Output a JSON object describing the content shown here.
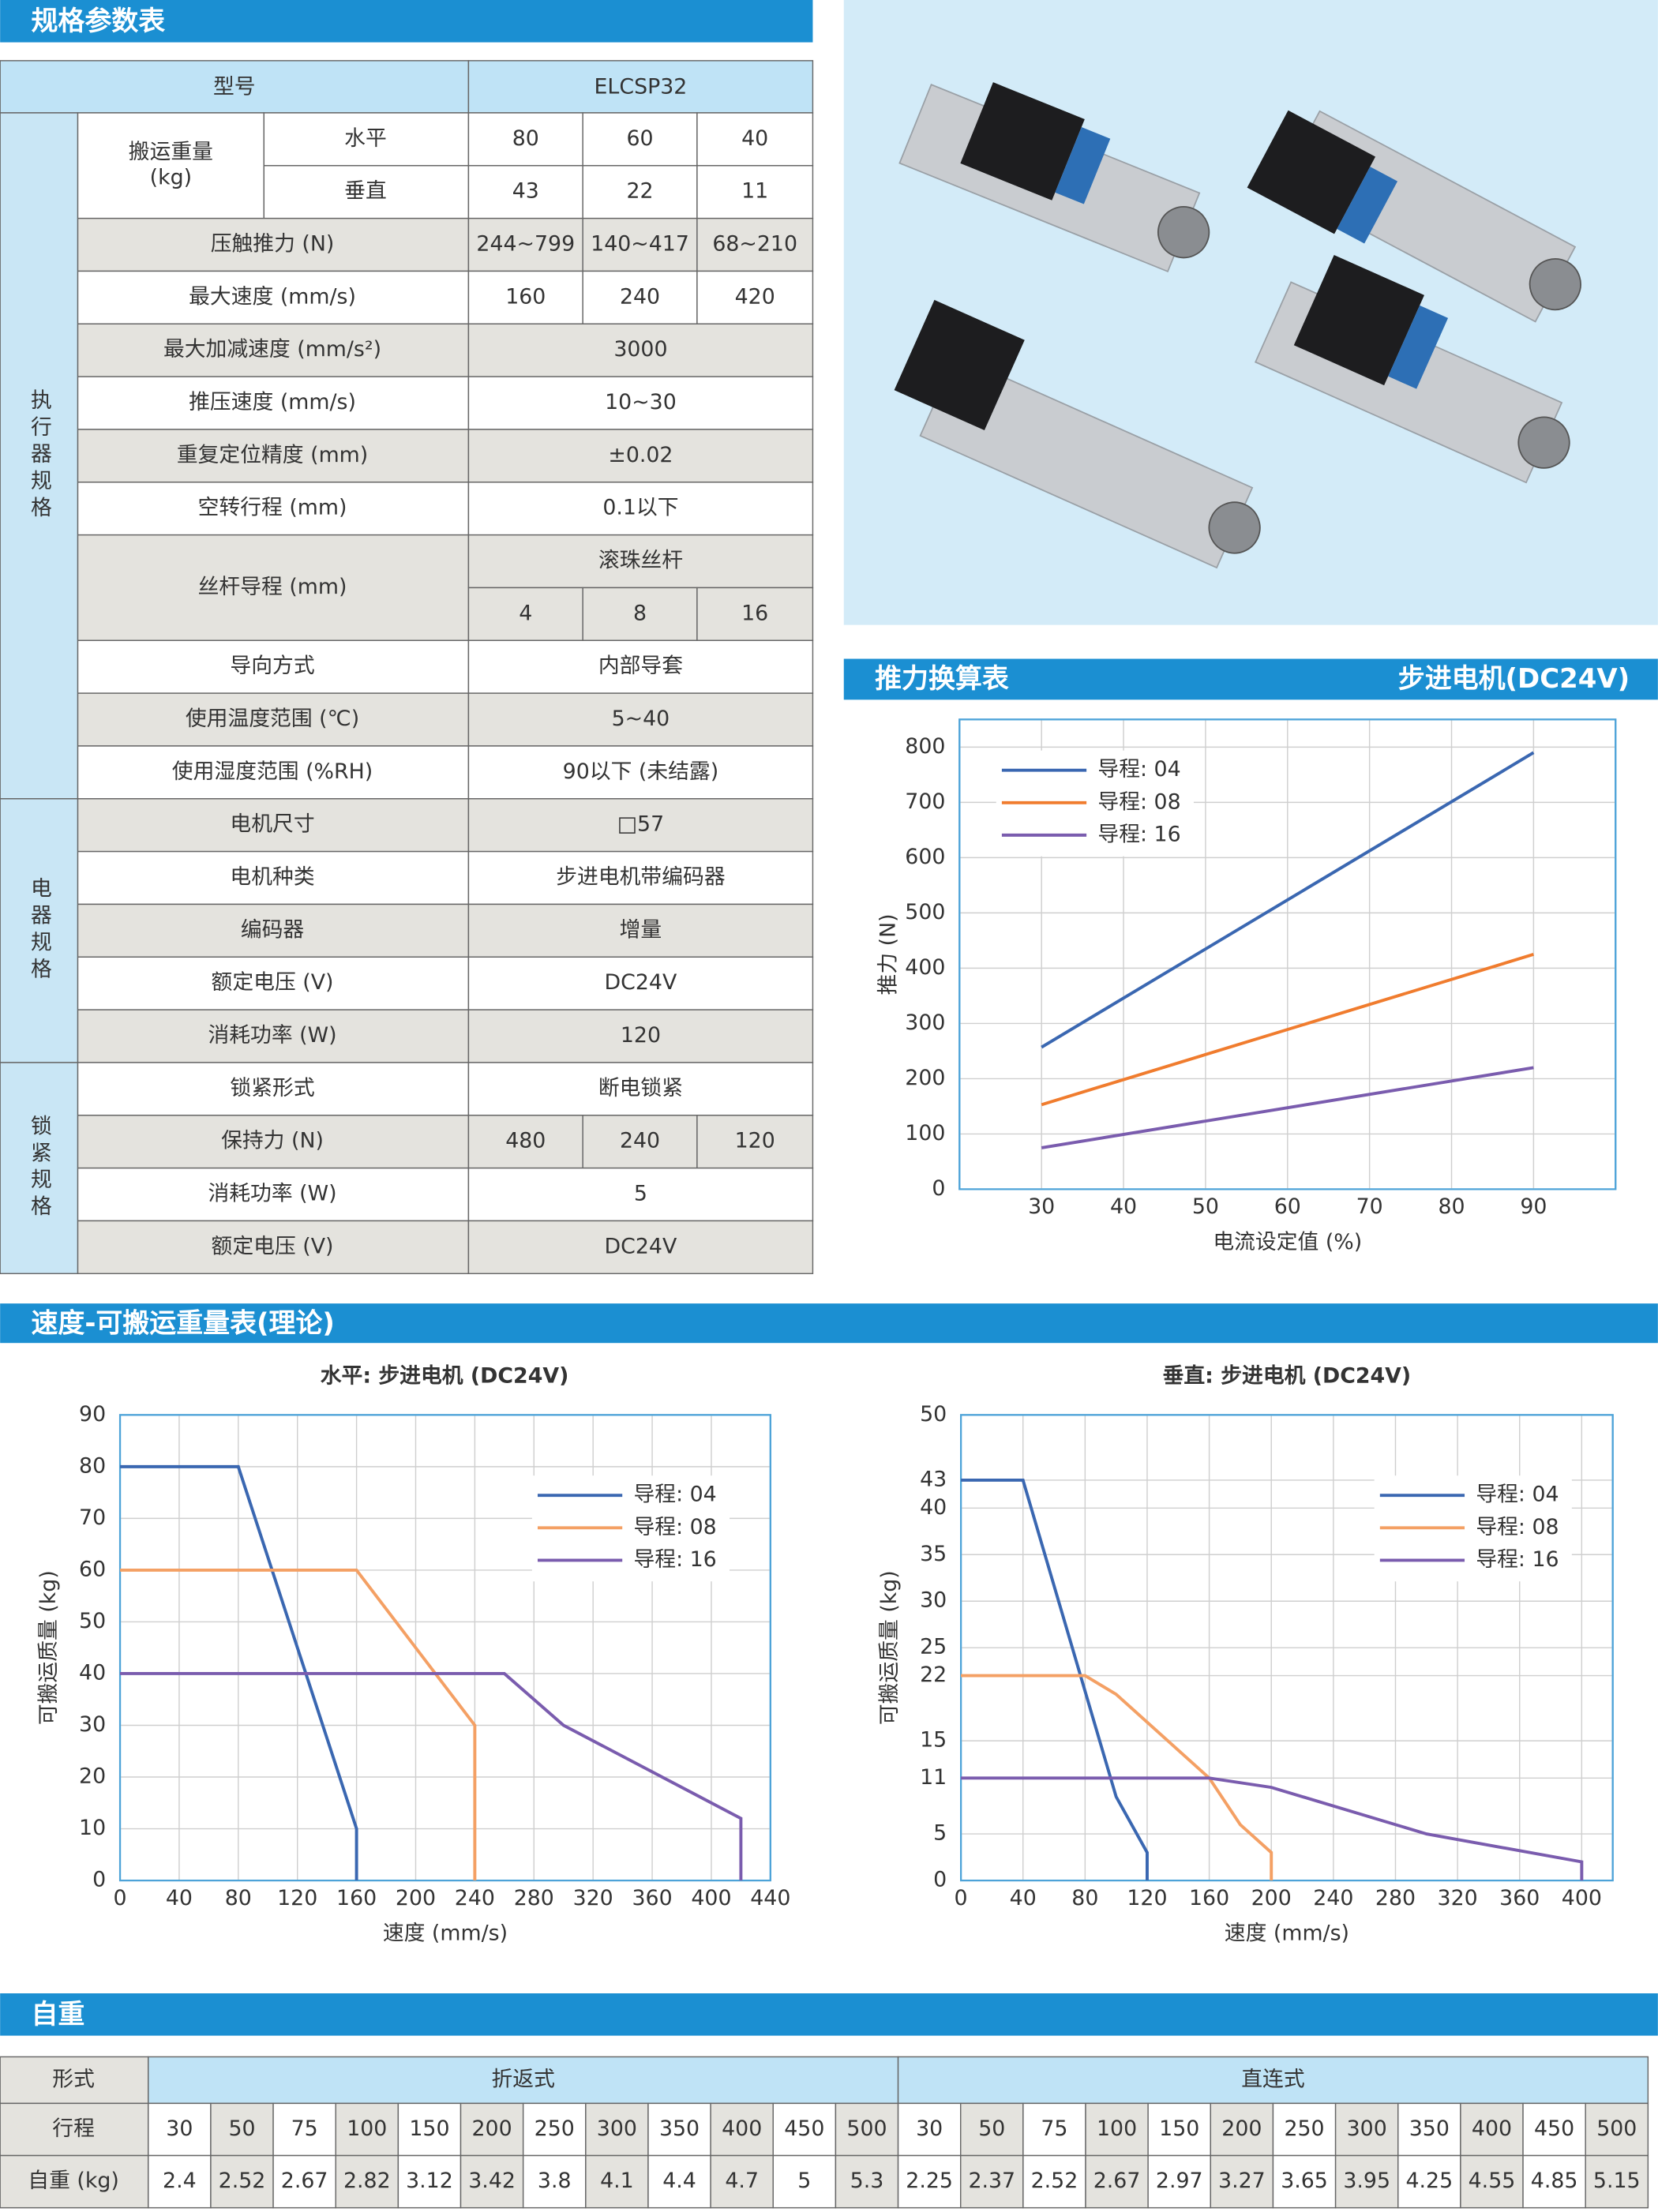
{
  "sections": {
    "spec": "规格参数表",
    "speed": "速度-可搬运重量表(理论)",
    "weight": "自重"
  },
  "spec_table": {
    "header": [
      "型号",
      "ELCSP32"
    ],
    "groups": [
      {
        "label": "执行器规格",
        "rows": [
          {
            "label": [
              "搬运重量",
              "(kg)"
            ],
            "sub": [
              {
                "label": "水平",
                "values": [
                  "80",
                  "60",
                  "40"
                ]
              },
              {
                "label": "垂直",
                "values": [
                  "43",
                  "22",
                  "11"
                ]
              }
            ]
          },
          {
            "label": "压触推力 (N)",
            "values": [
              "244~799",
              "140~417",
              "68~210"
            ]
          },
          {
            "label": "最大速度 (mm/s)",
            "values": [
              "160",
              "240",
              "420"
            ]
          },
          {
            "label": "最大加减速度 (mm/s²)",
            "values": [
              "3000"
            ]
          },
          {
            "label": "推压速度 (mm/s)",
            "values": [
              "10~30"
            ]
          },
          {
            "label": "重复定位精度 (mm)",
            "values": [
              "±0.02"
            ]
          },
          {
            "label": "空转行程 (mm)",
            "values": [
              "0.1以下"
            ]
          },
          {
            "label": "丝杆导程 (mm)",
            "value_header": "滚珠丝杆",
            "values": [
              "4",
              "8",
              "16"
            ]
          },
          {
            "label": "导向方式",
            "values": [
              "内部导套"
            ]
          },
          {
            "label": "使用温度范围 (℃)",
            "values": [
              "5~40"
            ]
          },
          {
            "label": "使用湿度范围 (%RH)",
            "values": [
              "90以下 (未结露)"
            ]
          }
        ]
      },
      {
        "label": "电器规格",
        "rows": [
          {
            "label": "电机尺寸",
            "values": [
              "□57"
            ]
          },
          {
            "label": "电机种类",
            "values": [
              "步进电机带编码器"
            ]
          },
          {
            "label": "编码器",
            "values": [
              "增量"
            ]
          },
          {
            "label": "额定电压 (V)",
            "values": [
              "DC24V"
            ]
          },
          {
            "label": "消耗功率 (W)",
            "values": [
              "120"
            ]
          }
        ]
      },
      {
        "label": "锁紧规格",
        "rows": [
          {
            "label": "锁紧形式",
            "values": [
              "断电锁紧"
            ]
          },
          {
            "label": "保持力 (N)",
            "values": [
              "480",
              "240",
              "120"
            ]
          },
          {
            "label": "消耗功率 (W)",
            "values": [
              "5"
            ]
          },
          {
            "label": "额定电压 (V)",
            "values": [
              "DC24V"
            ]
          }
        ]
      }
    ]
  },
  "chart_data": [
    {
      "type": "line",
      "title": "推力换算表",
      "subtitle": "步进电机(DC24V)",
      "x_label": "电流设定值 (%)",
      "y_label": "推力 (N)",
      "x": [
        30,
        90
      ],
      "series": [
        {
          "name": "导程: 04",
          "color": "#3a67b1",
          "values": [
            257,
            790
          ]
        },
        {
          "name": "导程: 08",
          "color": "#f07c2e",
          "values": [
            153,
            425
          ]
        },
        {
          "name": "导程: 16",
          "color": "#7a5cae",
          "values": [
            75,
            220
          ]
        }
      ],
      "xlim": [
        20,
        100
      ],
      "xticks": [
        30,
        40,
        50,
        60,
        70,
        80,
        90
      ],
      "ylim": [
        0,
        850
      ],
      "yticks": [
        0,
        100,
        200,
        300,
        400,
        500,
        600,
        700,
        800
      ],
      "grid": true,
      "legend": "upper left"
    },
    {
      "type": "line",
      "title": "水平: 步进电机 (DC24V)",
      "x_label": "速度 (mm/s)",
      "y_label": "可搬运质量 (kg)",
      "series": [
        {
          "name": "导程: 04",
          "color": "#3a67b1",
          "x": [
            0,
            80,
            160,
            160
          ],
          "values": [
            80,
            80,
            10,
            0
          ]
        },
        {
          "name": "导程: 08",
          "color": "#f4a064",
          "x": [
            0,
            160,
            240,
            240
          ],
          "values": [
            60,
            60,
            30,
            0
          ]
        },
        {
          "name": "导程: 16",
          "color": "#7a5cae",
          "x": [
            0,
            260,
            300,
            420,
            420
          ],
          "values": [
            40,
            40,
            30,
            12,
            0
          ]
        }
      ],
      "xlim": [
        0,
        440
      ],
      "xticks": [
        0,
        40,
        80,
        120,
        160,
        200,
        240,
        280,
        320,
        360,
        400,
        440
      ],
      "ylim": [
        0,
        90
      ],
      "yticks": [
        0,
        10,
        20,
        30,
        40,
        50,
        60,
        70,
        80,
        90
      ],
      "grid": true,
      "legend": "upper right"
    },
    {
      "type": "line",
      "title": "垂直: 步进电机 (DC24V)",
      "x_label": "速度 (mm/s)",
      "y_label": "可搬运质量 (kg)",
      "series": [
        {
          "name": "导程: 04",
          "color": "#3a67b1",
          "x": [
            0,
            40,
            100,
            120,
            120
          ],
          "values": [
            43,
            43,
            9,
            3,
            0
          ]
        },
        {
          "name": "导程: 08",
          "color": "#f4a064",
          "x": [
            0,
            80,
            100,
            160,
            180,
            200,
            200
          ],
          "values": [
            22,
            22,
            20,
            11,
            6,
            3,
            0
          ]
        },
        {
          "name": "导程: 16",
          "color": "#7a5cae",
          "x": [
            0,
            160,
            200,
            300,
            400,
            400
          ],
          "values": [
            11,
            11,
            10,
            5,
            2,
            0
          ]
        }
      ],
      "xlim": [
        0,
        420
      ],
      "xticks": [
        0,
        40,
        80,
        120,
        160,
        200,
        240,
        280,
        320,
        360,
        400
      ],
      "ylim": [
        0,
        50
      ],
      "yticks": [
        0,
        5,
        11,
        15,
        22,
        25,
        30,
        35,
        40,
        43,
        50
      ],
      "grid": true,
      "legend": "upper right"
    }
  ],
  "weight_table": {
    "header": [
      "形式",
      "折返式",
      "直连式"
    ],
    "rows": [
      {
        "label": "行程",
        "values": [
          "30",
          "50",
          "75",
          "100",
          "150",
          "200",
          "250",
          "300",
          "350",
          "400",
          "450",
          "500",
          "30",
          "50",
          "75",
          "100",
          "150",
          "200",
          "250",
          "300",
          "350",
          "400",
          "450",
          "500"
        ]
      },
      {
        "label": "自重 (kg)",
        "values": [
          "2.4",
          "2.52",
          "2.67",
          "2.82",
          "3.12",
          "3.42",
          "3.8",
          "4.1",
          "4.4",
          "4.7",
          "5",
          "5.3",
          "2.25",
          "2.37",
          "2.52",
          "2.67",
          "2.97",
          "3.27",
          "3.65",
          "3.95",
          "4.25",
          "4.55",
          "4.85",
          "5.15"
        ]
      }
    ]
  }
}
